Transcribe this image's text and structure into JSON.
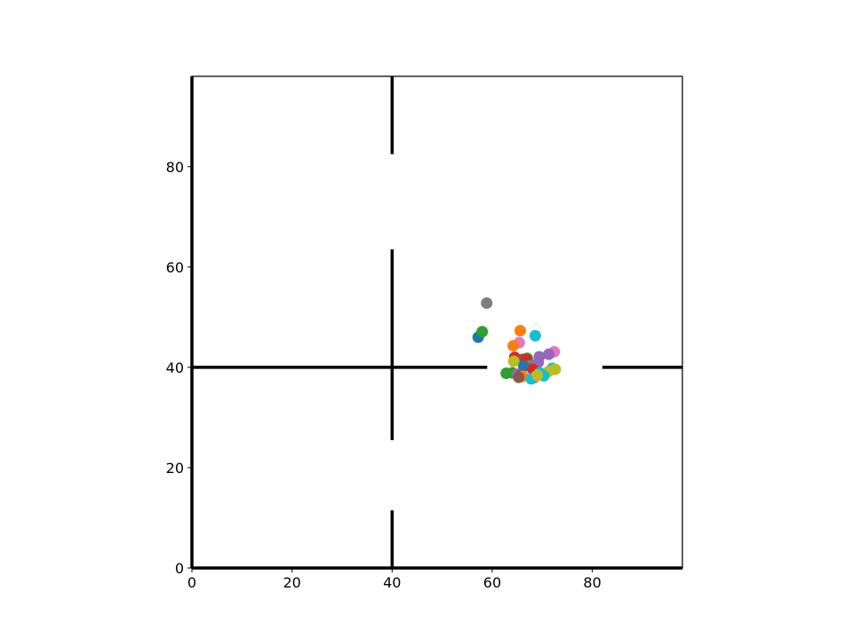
{
  "chart_data": {
    "type": "scatter",
    "title": "",
    "xlabel": "",
    "ylabel": "",
    "xlim": [
      0,
      98
    ],
    "ylim": [
      0,
      98
    ],
    "grid": false,
    "legend": "none",
    "xticks": [
      "0",
      "20",
      "40",
      "60",
      "80"
    ],
    "yticks": [
      "0",
      "20",
      "40",
      "60",
      "80"
    ],
    "wall_color": "#000000",
    "walls": [
      {
        "x": [
          0,
          0
        ],
        "y": [
          0,
          98
        ]
      },
      {
        "x": [
          0,
          98
        ],
        "y": [
          0,
          0
        ]
      },
      {
        "x": [
          0,
          59
        ],
        "y": [
          40,
          40
        ]
      },
      {
        "x": [
          82,
          98
        ],
        "y": [
          40,
          40
        ]
      },
      {
        "x": [
          40,
          40
        ],
        "y": [
          0,
          11.5
        ]
      },
      {
        "x": [
          40,
          40
        ],
        "y": [
          25.5,
          63.5
        ]
      },
      {
        "x": [
          40,
          40
        ],
        "y": [
          82.5,
          98
        ]
      }
    ],
    "points": [
      {
        "x": 57.2,
        "y": 46.0,
        "color": "#1f77b4"
      },
      {
        "x": 58.0,
        "y": 47.1,
        "color": "#2ca02c"
      },
      {
        "x": 58.9,
        "y": 52.8,
        "color": "#7f7f7f"
      },
      {
        "x": 65.6,
        "y": 47.3,
        "color": "#ff7f0e"
      },
      {
        "x": 68.6,
        "y": 46.3,
        "color": "#17becf"
      },
      {
        "x": 65.4,
        "y": 44.9,
        "color": "#e377c2"
      },
      {
        "x": 64.2,
        "y": 44.3,
        "color": "#ff7f0e"
      },
      {
        "x": 72.4,
        "y": 43.1,
        "color": "#e377c2"
      },
      {
        "x": 71.3,
        "y": 42.6,
        "color": "#9467bd"
      },
      {
        "x": 69.4,
        "y": 42.1,
        "color": "#9467bd"
      },
      {
        "x": 64.5,
        "y": 42.0,
        "color": "#d62728"
      },
      {
        "x": 66.1,
        "y": 41.6,
        "color": "#8c564b"
      },
      {
        "x": 67.0,
        "y": 41.8,
        "color": "#2ca02c"
      },
      {
        "x": 66.8,
        "y": 41.6,
        "color": "#d62728"
      },
      {
        "x": 64.3,
        "y": 41.2,
        "color": "#bcbd22"
      },
      {
        "x": 69.2,
        "y": 41.0,
        "color": "#9467bd"
      },
      {
        "x": 67.5,
        "y": 40.3,
        "color": "#7f7f7f"
      },
      {
        "x": 66.3,
        "y": 40.2,
        "color": "#1f77b4"
      },
      {
        "x": 68.1,
        "y": 39.6,
        "color": "#d62728"
      },
      {
        "x": 72.0,
        "y": 39.8,
        "color": "#17becf"
      },
      {
        "x": 72.6,
        "y": 39.6,
        "color": "#bcbd22"
      },
      {
        "x": 71.3,
        "y": 39.2,
        "color": "#bcbd22"
      },
      {
        "x": 62.8,
        "y": 38.8,
        "color": "#2ca02c"
      },
      {
        "x": 64.0,
        "y": 38.9,
        "color": "#2ca02c"
      },
      {
        "x": 65.0,
        "y": 38.6,
        "color": "#9467bd"
      },
      {
        "x": 65.7,
        "y": 38.4,
        "color": "#8c564b"
      },
      {
        "x": 66.1,
        "y": 38.2,
        "color": "#ff7f0e"
      },
      {
        "x": 70.3,
        "y": 38.3,
        "color": "#17becf"
      },
      {
        "x": 68.4,
        "y": 37.9,
        "color": "#e377c2"
      },
      {
        "x": 67.8,
        "y": 37.7,
        "color": "#17becf"
      },
      {
        "x": 69.5,
        "y": 38.9,
        "color": "#17becf"
      },
      {
        "x": 69.0,
        "y": 38.4,
        "color": "#bcbd22"
      },
      {
        "x": 65.3,
        "y": 38.0,
        "color": "#8c564b"
      }
    ]
  }
}
